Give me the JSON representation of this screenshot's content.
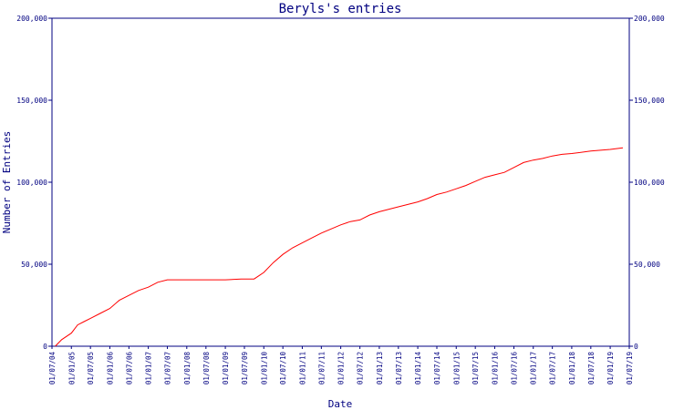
{
  "chart_data": {
    "type": "line",
    "title": "Beryls's entries",
    "xlabel": "Date",
    "ylabel": "Number of Entries",
    "ylim": [
      0,
      200000
    ],
    "y_ticks": [
      0,
      50000,
      100000,
      150000,
      200000
    ],
    "y_tick_labels": [
      "0",
      "50,000",
      "100,000",
      "150,000",
      "200,000"
    ],
    "x_range": [
      "2004-07-01",
      "2019-07-01"
    ],
    "x_tick_labels": [
      "01/07/04",
      "01/01/05",
      "01/07/05",
      "01/01/06",
      "01/07/06",
      "01/01/07",
      "01/07/07",
      "01/01/08",
      "01/07/08",
      "01/01/09",
      "01/07/09",
      "01/01/10",
      "01/07/10",
      "01/01/11",
      "01/07/11",
      "01/01/12",
      "01/07/12",
      "01/01/13",
      "01/07/13",
      "01/01/14",
      "01/07/14",
      "01/01/15",
      "01/07/15",
      "01/01/16",
      "01/07/16",
      "01/01/17",
      "01/07/17",
      "01/01/18",
      "01/07/18",
      "01/01/19",
      "01/07/19"
    ],
    "x_tick_dates": [
      "2004-07-01",
      "2005-01-01",
      "2005-07-01",
      "2006-01-01",
      "2006-07-01",
      "2007-01-01",
      "2007-07-01",
      "2008-01-01",
      "2008-07-01",
      "2009-01-01",
      "2009-07-01",
      "2010-01-01",
      "2010-07-01",
      "2011-01-01",
      "2011-07-01",
      "2012-01-01",
      "2012-07-01",
      "2013-01-01",
      "2013-07-01",
      "2014-01-01",
      "2014-07-01",
      "2015-01-01",
      "2015-07-01",
      "2016-01-01",
      "2016-07-01",
      "2017-01-01",
      "2017-07-01",
      "2018-01-01",
      "2018-07-01",
      "2019-01-01",
      "2019-07-01"
    ],
    "grid": false,
    "colors": {
      "axis": "#000080",
      "line": "#ff0000",
      "text": "#000080"
    },
    "series": [
      {
        "x": [
          "2004-08-01",
          "2004-10-01",
          "2005-01-01",
          "2005-03-01",
          "2005-05-01",
          "2005-07-01",
          "2005-10-01",
          "2006-01-01",
          "2006-04-01",
          "2006-07-01",
          "2006-10-01",
          "2007-01-01",
          "2007-04-01",
          "2007-07-01",
          "2007-10-01",
          "2008-01-01",
          "2008-07-01",
          "2009-01-01",
          "2009-06-01",
          "2009-10-01",
          "2010-01-01",
          "2010-04-01",
          "2010-07-01",
          "2010-10-01",
          "2011-01-01",
          "2011-04-01",
          "2011-07-01",
          "2011-10-01",
          "2012-01-01",
          "2012-04-01",
          "2012-07-01",
          "2012-10-01",
          "2013-01-01",
          "2013-07-01",
          "2014-01-01",
          "2014-04-01",
          "2014-07-01",
          "2014-10-01",
          "2015-01-01",
          "2015-04-01",
          "2015-07-01",
          "2015-10-01",
          "2016-01-01",
          "2016-04-01",
          "2016-07-01",
          "2016-10-01",
          "2017-01-01",
          "2017-04-01",
          "2017-07-01",
          "2017-10-01",
          "2018-01-01",
          "2018-07-01",
          "2019-01-01",
          "2019-05-01"
        ],
        "y": [
          0,
          4000,
          8000,
          13000,
          15000,
          17000,
          20000,
          23000,
          28000,
          31000,
          34000,
          36000,
          39000,
          40500,
          40500,
          40500,
          40500,
          40500,
          41000,
          41000,
          45000,
          51000,
          56000,
          60000,
          63000,
          66000,
          69000,
          71500,
          74000,
          76000,
          77000,
          80000,
          82000,
          85000,
          88000,
          90000,
          92500,
          94000,
          96000,
          98000,
          100500,
          103000,
          104500,
          106000,
          109000,
          112000,
          113500,
          114500,
          116000,
          117000,
          117500,
          119000,
          120000,
          121000
        ]
      }
    ]
  }
}
